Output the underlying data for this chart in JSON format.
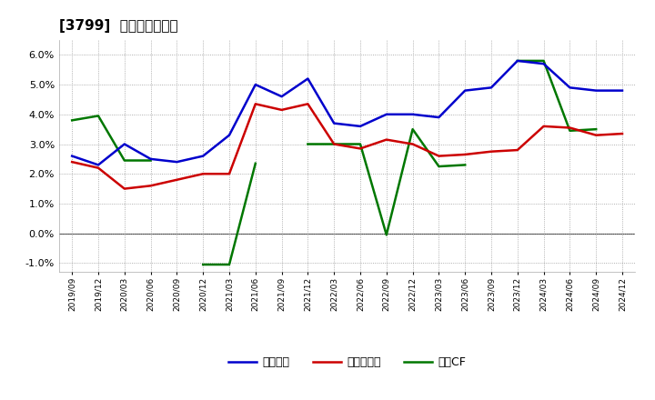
{
  "title": "[3799]  マージンの推移",
  "x_labels": [
    "2019/09",
    "2019/12",
    "2020/03",
    "2020/06",
    "2020/09",
    "2020/12",
    "2021/03",
    "2021/06",
    "2021/09",
    "2021/12",
    "2022/03",
    "2022/06",
    "2022/09",
    "2022/12",
    "2023/03",
    "2023/06",
    "2023/09",
    "2023/12",
    "2024/03",
    "2024/06",
    "2024/09",
    "2024/12"
  ],
  "keijo_rieki": [
    2.6,
    2.3,
    3.0,
    2.5,
    2.4,
    2.6,
    3.3,
    5.0,
    4.6,
    5.2,
    3.7,
    3.6,
    4.0,
    4.0,
    3.9,
    4.8,
    4.9,
    5.8,
    5.7,
    4.9,
    4.8,
    4.8
  ],
  "touki_junrieki": [
    2.4,
    2.2,
    1.5,
    1.6,
    1.8,
    2.0,
    2.0,
    4.35,
    4.15,
    4.35,
    3.0,
    2.85,
    3.15,
    3.0,
    2.6,
    2.65,
    2.75,
    2.8,
    3.6,
    3.55,
    3.3,
    3.35
  ],
  "eigyo_cf": [
    3.8,
    3.95,
    2.45,
    2.45,
    null,
    -1.05,
    -1.05,
    2.35,
    null,
    3.0,
    3.0,
    3.0,
    -0.05,
    3.5,
    2.25,
    2.3,
    null,
    5.8,
    5.8,
    3.45,
    3.5,
    null
  ],
  "keijo_color": "#0000cc",
  "touki_color": "#cc0000",
  "eigyo_color": "#007700",
  "ylim": [
    -1.3,
    6.5
  ],
  "yticks": [
    -1.0,
    0.0,
    1.0,
    2.0,
    3.0,
    4.0,
    5.0,
    6.0
  ],
  "bg_color": "#ffffff",
  "plot_bg_color": "#ffffff",
  "grid_color": "#999999",
  "zero_line_color": "#444444",
  "legend_labels": [
    "経常利益",
    "当期純利益",
    "営業CF"
  ]
}
